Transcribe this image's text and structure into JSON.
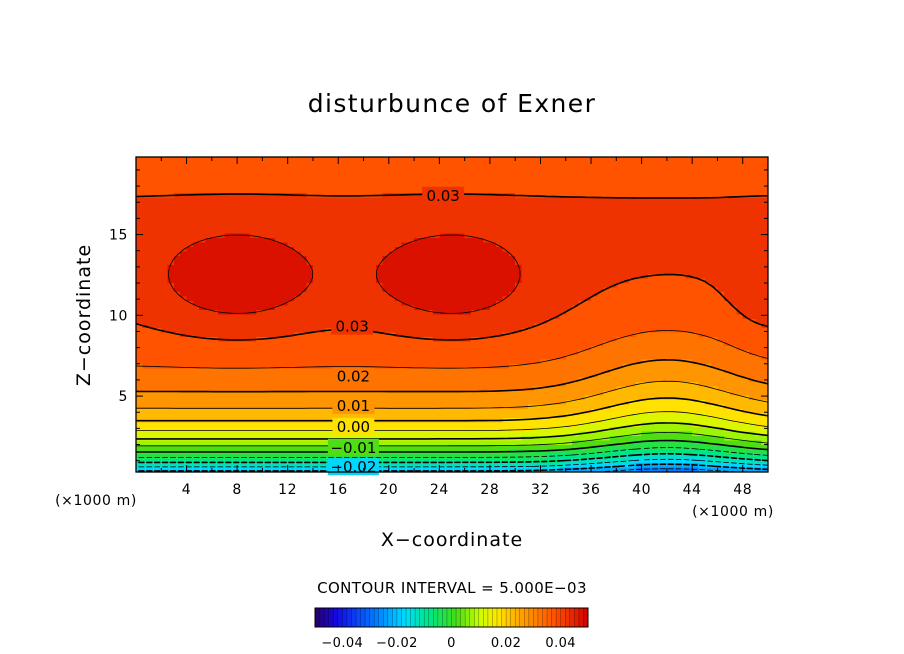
{
  "chart_data": {
    "type": "contour",
    "title": "disturbunce of Exner",
    "xlabel": "X−coordinate",
    "ylabel": "Z−coordinate",
    "x_unit": "(×1000 m)",
    "y_unit": "(×1000 m)",
    "xlim": [
      0,
      50
    ],
    "ylim": [
      0.3,
      19.8
    ],
    "x_ticks": [
      "4",
      "8",
      "12",
      "16",
      "20",
      "24",
      "28",
      "32",
      "36",
      "40",
      "44",
      "48"
    ],
    "x_tick_values": [
      4,
      8,
      12,
      16,
      20,
      24,
      28,
      32,
      36,
      40,
      44,
      48
    ],
    "y_ticks": [
      "5",
      "10",
      "15"
    ],
    "y_tick_values": [
      5,
      10,
      15
    ],
    "contour_interval_text": "CONTOUR INTERVAL = 5.000E−03",
    "contour_interval": 0.005,
    "field_range": [
      -0.025,
      0.045
    ],
    "contour_labels": [
      {
        "text": "0.03",
        "x": 24.3,
        "y": 17.4
      },
      {
        "text": "0.03",
        "x": 17.1,
        "y": 9.3
      },
      {
        "text": "0.02",
        "x": 17.2,
        "y": 6.2
      },
      {
        "text": "0.01",
        "x": 17.2,
        "y": 4.4
      },
      {
        "text": "0.00",
        "x": 17.2,
        "y": 3.1
      },
      {
        "text": "−0.01",
        "x": 17.2,
        "y": 1.8
      },
      {
        "text": "−0.02",
        "x": 17.2,
        "y": 0.6
      }
    ],
    "colorbar": {
      "min": -0.05,
      "max": 0.05,
      "tick_labels": [
        "−0.04",
        "−0.02",
        "0",
        "0.02",
        "0.04"
      ],
      "tick_values": [
        -0.04,
        -0.02,
        0,
        0.02,
        0.04
      ]
    },
    "legend": "none",
    "grid": false
  }
}
